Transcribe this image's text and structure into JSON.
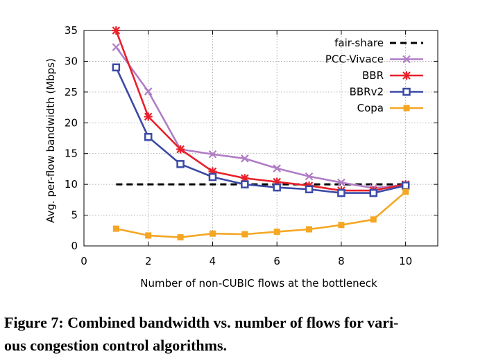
{
  "caption": "Figure 7: Combined bandwidth vs. number of flows for vari-ous congestion control algorithms.",
  "caption_lines": [
    "Figure 7: Combined bandwidth vs. number of flows for vari-",
    "ous congestion control algorithms."
  ],
  "chart_data": {
    "type": "line",
    "xlabel": "Number of non-CUBIC flows at the bottleneck",
    "ylabel": "Avg. per-flow bandwidth (Mbps)",
    "xlim": [
      0,
      11
    ],
    "ylim": [
      0,
      35
    ],
    "xticks": [
      0,
      2,
      4,
      6,
      8,
      10
    ],
    "yticks": [
      0,
      5,
      10,
      15,
      20,
      25,
      30,
      35
    ],
    "grid": true,
    "legend_position": "top-right",
    "x": [
      1,
      2,
      3,
      4,
      5,
      6,
      7,
      8,
      9,
      10
    ],
    "series": [
      {
        "name": "fair-share",
        "color": "#000000",
        "style": "dashed",
        "marker": "none",
        "values": [
          10,
          10,
          10,
          10,
          10,
          10,
          10,
          10,
          10,
          10
        ]
      },
      {
        "name": "PCC-Vivace",
        "color": "#b07cc6",
        "style": "solid",
        "marker": "x",
        "values": [
          32.3,
          25.1,
          15.7,
          14.9,
          14.2,
          12.6,
          11.3,
          10.3,
          9.4,
          9.9
        ]
      },
      {
        "name": "BBR",
        "color": "#e8202a",
        "style": "solid",
        "marker": "star",
        "values": [
          35.0,
          21.0,
          15.7,
          12.1,
          11.0,
          10.4,
          9.8,
          9.0,
          9.0,
          10.0
        ]
      },
      {
        "name": "BBRv2",
        "color": "#3a4aa6",
        "style": "solid",
        "marker": "square",
        "values": [
          29.0,
          17.7,
          13.3,
          11.2,
          10.0,
          9.5,
          9.2,
          8.6,
          8.6,
          9.8
        ]
      },
      {
        "name": "Copa",
        "color": "#f5a623",
        "style": "solid",
        "marker": "square-small",
        "values": [
          2.8,
          1.7,
          1.4,
          2.0,
          1.9,
          2.3,
          2.7,
          3.4,
          4.3,
          8.8
        ]
      }
    ]
  }
}
